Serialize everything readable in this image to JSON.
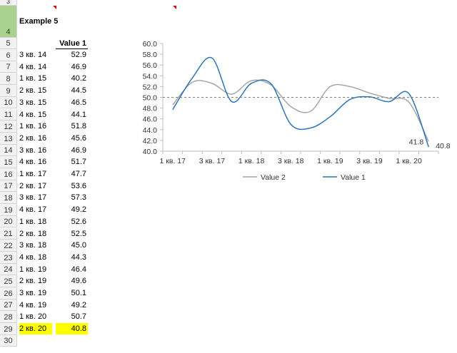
{
  "sheet": {
    "title_cell": "Example 5",
    "value_header": "Value 1",
    "top_row_number": "3",
    "row_numbers": [
      "4",
      "5",
      "6",
      "7",
      "8",
      "9",
      "10",
      "11",
      "12",
      "13",
      "14",
      "15",
      "16",
      "17",
      "18",
      "19",
      "20",
      "21",
      "22",
      "23",
      "24",
      "25",
      "26",
      "27",
      "28",
      "29",
      "30"
    ],
    "rows": [
      {
        "label": "3 кв. 14",
        "value": "52.9"
      },
      {
        "label": "4 кв. 14",
        "value": "46.9"
      },
      {
        "label": "1 кв. 15",
        "value": "40.2"
      },
      {
        "label": "2 кв. 15",
        "value": "44.5"
      },
      {
        "label": "3 кв. 15",
        "value": "46.5"
      },
      {
        "label": "4 кв. 15",
        "value": "44.1"
      },
      {
        "label": "1 кв. 16",
        "value": "51.8"
      },
      {
        "label": "2 кв. 16",
        "value": "45.6"
      },
      {
        "label": "3 кв. 16",
        "value": "46.9"
      },
      {
        "label": "4 кв. 16",
        "value": "51.7"
      },
      {
        "label": "1 кв. 17",
        "value": "47.7"
      },
      {
        "label": "2 кв. 17",
        "value": "53.6"
      },
      {
        "label": "3 кв. 17",
        "value": "57.3"
      },
      {
        "label": "4 кв. 17",
        "value": "49.2"
      },
      {
        "label": "1 кв. 18",
        "value": "52.6"
      },
      {
        "label": "2 кв. 18",
        "value": "52.5"
      },
      {
        "label": "3 кв. 18",
        "value": "45.0"
      },
      {
        "label": "4 кв. 18",
        "value": "44.3"
      },
      {
        "label": "1 кв. 19",
        "value": "46.4"
      },
      {
        "label": "2 кв. 19",
        "value": "49.6"
      },
      {
        "label": "3 кв. 19",
        "value": "50.1"
      },
      {
        "label": "4 кв. 19",
        "value": "49.2"
      },
      {
        "label": "1 кв. 20",
        "value": "50.7"
      },
      {
        "label": "2 кв. 20",
        "value": "40.8",
        "highlight": true
      }
    ],
    "highlight_color": "#ffff00",
    "selected_row": "4"
  },
  "chart_data": {
    "type": "line",
    "categories": [
      "1 кв. 17",
      "2 кв. 17",
      "3 кв. 17",
      "4 кв. 17",
      "1 кв. 18",
      "2 кв. 18",
      "3 кв. 18",
      "4 кв. 18",
      "1 кв. 19",
      "2 кв. 19",
      "3 кв. 19",
      "4 кв. 19",
      "1 кв. 20",
      "2 кв. 20"
    ],
    "x_tick_labels": [
      "1 кв. 17",
      "3 кв. 17",
      "1 кв. 18",
      "3 кв. 18",
      "1 кв. 19",
      "3 кв. 19",
      "1 кв. 20"
    ],
    "y_tick_labels": [
      "40.0",
      "42.0",
      "44.0",
      "46.0",
      "48.0",
      "50.0",
      "52.0",
      "54.0",
      "56.0",
      "58.0",
      "60.0"
    ],
    "ylim": [
      40,
      60
    ],
    "y_step": 2,
    "smooth": true,
    "series": [
      {
        "name": "Value 1",
        "color": "#2e75b6",
        "values": [
          47.7,
          53.6,
          57.3,
          49.2,
          52.6,
          52.5,
          45.0,
          44.3,
          46.4,
          49.6,
          50.1,
          49.2,
          50.7,
          40.8
        ]
      },
      {
        "name": "Value 2",
        "color": "#a5a5a5",
        "values": [
          48.6,
          52.8,
          52.6,
          50.6,
          53.1,
          52.3,
          48.3,
          47.4,
          52.0,
          52.0,
          50.8,
          49.8,
          49.1,
          41.8
        ]
      }
    ],
    "reference_line": {
      "value": 50,
      "style": "dashed",
      "color": "#808080"
    },
    "data_labels": [
      {
        "series": "Value 2",
        "text": "41.8"
      },
      {
        "series": "Value 1",
        "text": "40.8"
      }
    ],
    "legend": {
      "position": "bottom",
      "items": [
        "Value 2",
        "Value 1"
      ]
    }
  }
}
